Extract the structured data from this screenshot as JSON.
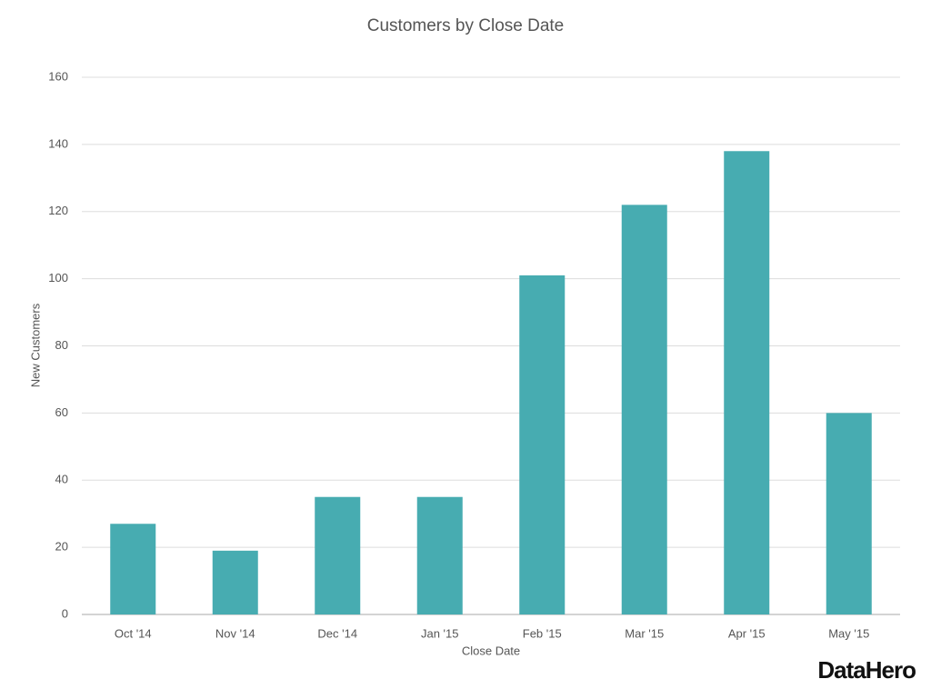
{
  "chart_data": {
    "type": "bar",
    "title": "Customers by Close Date",
    "x_label": "Close Date",
    "y_label": "New Customers",
    "categories": [
      "Oct '14",
      "Nov '14",
      "Dec '14",
      "Jan '15",
      "Feb '15",
      "Mar '15",
      "Apr '15",
      "May '15"
    ],
    "values": [
      27,
      19,
      35,
      35,
      101,
      122,
      138,
      60
    ],
    "color": "#47acb1",
    "ylim": [
      0,
      160
    ],
    "yticks": [
      0,
      20,
      40,
      60,
      80,
      100,
      120,
      140,
      160
    ],
    "grid": true
  },
  "brand": "DataHero"
}
